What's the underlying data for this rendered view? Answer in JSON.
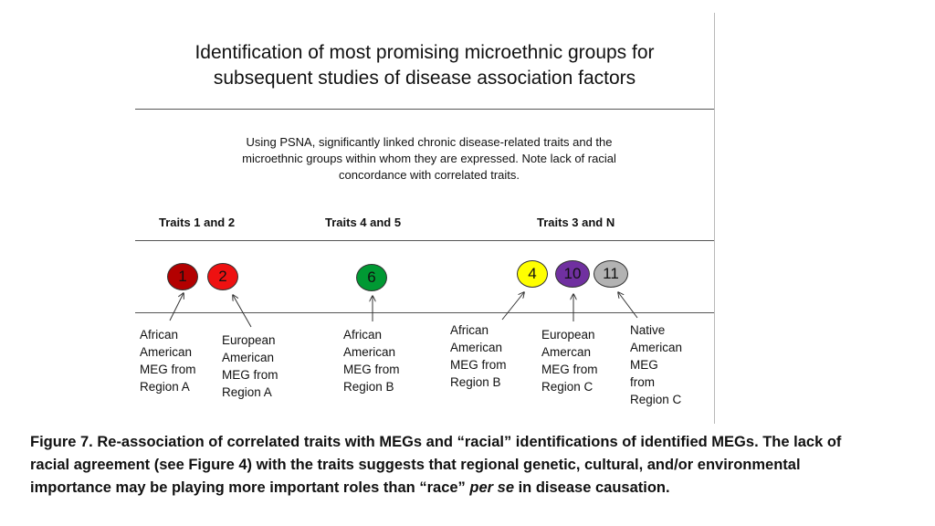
{
  "header": {
    "title_line1": "Identification of most promising microethnic groups for",
    "title_line2": "subsequent studies of disease association factors"
  },
  "intro": {
    "line1": "Using PSNA, significantly linked chronic disease-related traits and the",
    "line2": "microethnic groups within whom they are expressed. Note lack of racial",
    "line3": "concordance with correlated traits."
  },
  "groups": [
    {
      "label": "Traits 1 and 2"
    },
    {
      "label": "Traits 4 and 5"
    },
    {
      "label": "Traits 3 and N"
    }
  ],
  "nodes": [
    {
      "label": "1",
      "color": "#b30000"
    },
    {
      "label": "2",
      "color": "#ee1111"
    },
    {
      "label": "6",
      "color": "#009933"
    },
    {
      "label": "4",
      "color": "#ffff00"
    },
    {
      "label": "10",
      "color": "#7030a0"
    },
    {
      "label": "11",
      "color": "#b3b3b3"
    }
  ],
  "annotations": [
    {
      "lines": [
        "African",
        "American",
        "MEG from",
        "Region A"
      ]
    },
    {
      "lines": [
        "European",
        "American",
        "MEG from",
        "Region A"
      ]
    },
    {
      "lines": [
        "African",
        "American",
        "MEG from",
        "Region B"
      ]
    },
    {
      "lines": [
        "African",
        "American",
        "MEG from",
        "Region B"
      ]
    },
    {
      "lines": [
        "European",
        "Amercan",
        "MEG from",
        "Region C"
      ]
    },
    {
      "lines": [
        "Native",
        "American",
        "MEG",
        "from",
        "Region C"
      ]
    }
  ],
  "caption": {
    "line1": "Figure 7. Re-association of correlated traits with MEGs and “racial” identifications of identified MEGs. The lack of",
    "line2": "racial agreement (see Figure 4) with the traits suggests that regional genetic, cultural, and/or environmental",
    "line3_prefix": "importance may be playing more important roles than “race” ",
    "line3_em": "per se",
    "line3_suffix": " in disease causation."
  }
}
